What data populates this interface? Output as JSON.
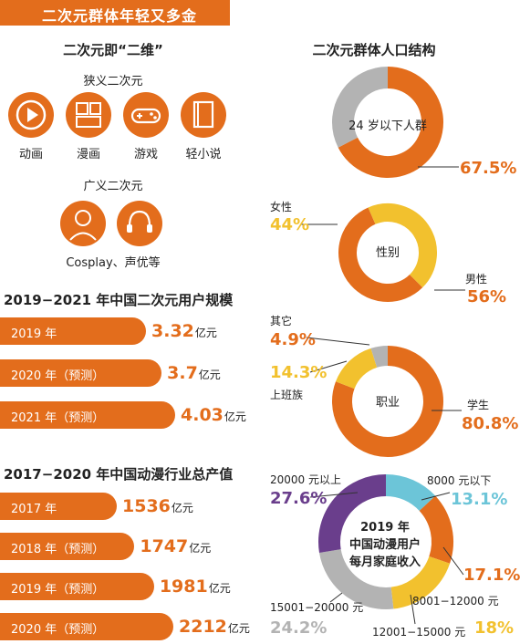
{
  "banner": {
    "title": "二次元群体年轻又多金"
  },
  "left": {
    "title": "二次元即“二维”",
    "narrow_label": "狭义二次元",
    "narrow_items": [
      {
        "label": "动画",
        "icon": "play-icon"
      },
      {
        "label": "漫画",
        "icon": "comic-icon"
      },
      {
        "label": "游戏",
        "icon": "gamepad-icon"
      },
      {
        "label": "轻小说",
        "icon": "book-icon"
      }
    ],
    "broad_label": "广义二次元",
    "broad_items_label": "Cosplay、声优等"
  },
  "colors": {
    "orange": "#e36d1c",
    "gray": "#b3b3b3",
    "yellow": "#f2c12e",
    "cyan": "#6cc5d8",
    "purple": "#6a3e8c"
  },
  "chart_data": [
    {
      "type": "bar",
      "title": "2019−2021 年中国二次元用户规模",
      "categories": [
        "2019 年",
        "2020 年（预测）",
        "2021 年（预测）"
      ],
      "values": [
        3.32,
        3.7,
        4.03
      ],
      "value_labels": [
        "3.32",
        "3.7",
        "4.03"
      ],
      "unit": "亿元"
    },
    {
      "type": "bar",
      "title": "2017−2020 年中国动漫行业总产值",
      "categories": [
        "2017 年",
        "2018 年（预测）",
        "2019 年（预测）",
        "2020 年（预测）"
      ],
      "values": [
        1536,
        1747,
        1981,
        2212
      ],
      "value_labels": [
        "1536",
        "1747",
        "1981",
        "2212"
      ],
      "unit": "亿元"
    },
    {
      "type": "pie",
      "title": "二次元群体人口结构",
      "center_label": "24 岁以下人群",
      "slices": [
        {
          "name": "24 岁以下人群",
          "value": 67.5,
          "label": "67.5%",
          "color": "#e36d1c"
        }
      ],
      "remainder_color": "#b3b3b3"
    },
    {
      "type": "pie",
      "center_label": "性别",
      "slices": [
        {
          "name": "男性",
          "value": 56,
          "label": "56%",
          "color": "#e36d1c"
        },
        {
          "name": "女性",
          "value": 44,
          "label": "44%",
          "color": "#f2c12e"
        }
      ]
    },
    {
      "type": "pie",
      "center_label": "职业",
      "slices": [
        {
          "name": "学生",
          "value": 80.8,
          "label": "80.8%",
          "color": "#e36d1c"
        },
        {
          "name": "上班族",
          "value": 14.3,
          "label": "14.3%",
          "color": "#f2c12e"
        },
        {
          "name": "其它",
          "value": 4.9,
          "label": "4.9%",
          "color": "#b3b3b3"
        }
      ]
    },
    {
      "type": "pie",
      "center_label_lines": [
        "2019 年",
        "中国动漫用户",
        "每月家庭收入"
      ],
      "slices": [
        {
          "name": "8000 元以下",
          "value": 13.1,
          "label": "13.1%",
          "color": "#6cc5d8"
        },
        {
          "name": "8001−12000 元",
          "value": 17.1,
          "label": "17.1%",
          "color": "#e36d1c"
        },
        {
          "name": "12001−15000 元",
          "value": 18,
          "label": "18%",
          "color": "#f2c12e"
        },
        {
          "name": "15001−20000 元",
          "value": 24.2,
          "label": "24.2%",
          "color": "#b3b3b3"
        },
        {
          "name": "20000 元以上",
          "value": 27.6,
          "label": "27.6%",
          "color": "#6a3e8c"
        }
      ]
    }
  ]
}
